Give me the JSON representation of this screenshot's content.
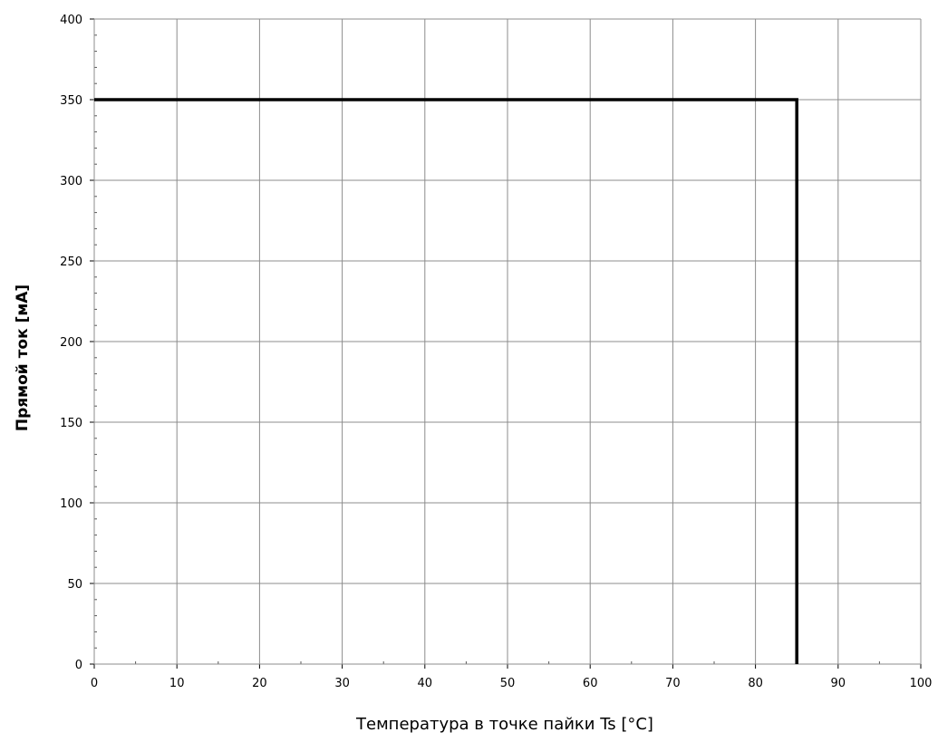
{
  "chart_data": {
    "type": "line",
    "title": "",
    "xlabel": "Температура в точке пайки Ts [°C]",
    "ylabel": "Прямой ток [мА]",
    "xlim": [
      0,
      100
    ],
    "ylim": [
      0,
      400
    ],
    "grid": true,
    "x_ticks": [
      "0",
      "10",
      "20",
      "30",
      "40",
      "50",
      "60",
      "70",
      "80",
      "90",
      "100"
    ],
    "y_ticks": [
      "0",
      "50",
      "100",
      "150",
      "200",
      "250",
      "300",
      "350",
      "400"
    ],
    "series": [
      {
        "points": [
          {
            "x": 0,
            "y": 350
          },
          {
            "x": 85,
            "y": 350
          },
          {
            "x": 85,
            "y": 0
          }
        ],
        "color": "#000000"
      }
    ]
  }
}
